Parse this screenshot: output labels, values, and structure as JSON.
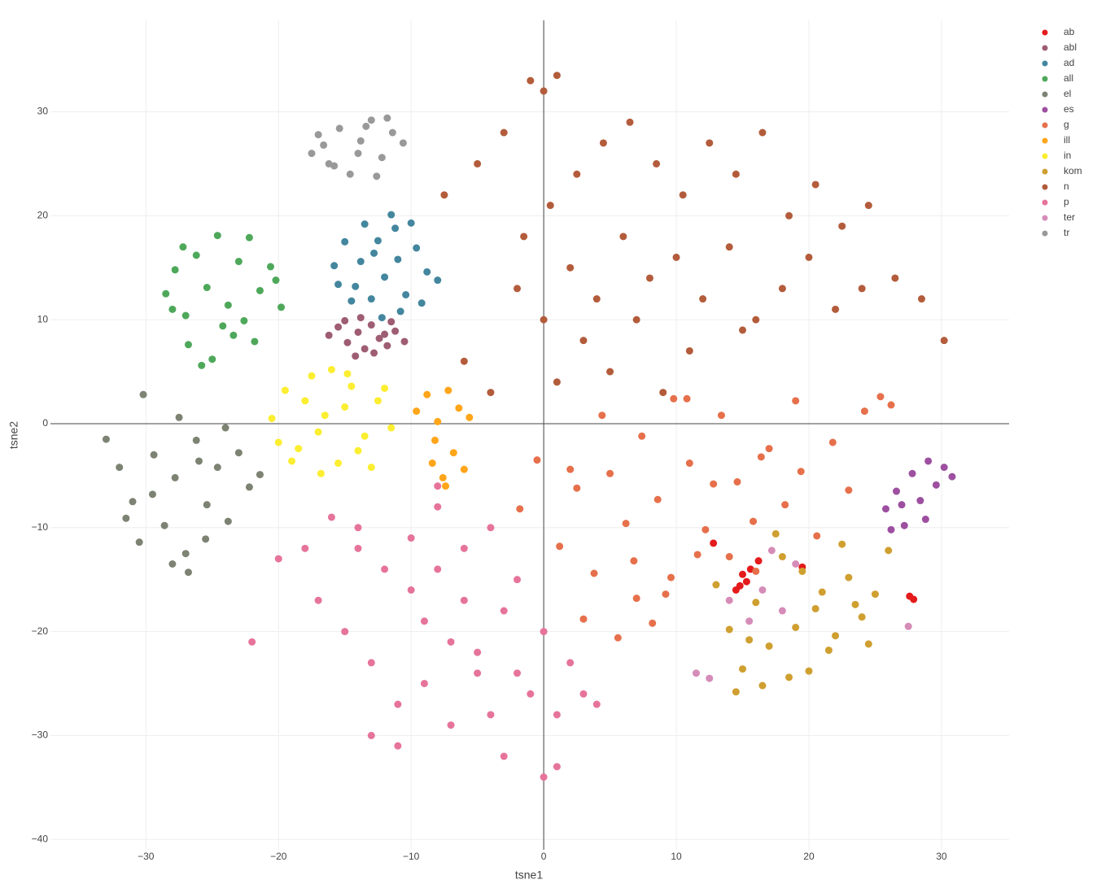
{
  "chart_data": {
    "type": "scatter",
    "x_label": "tsne1",
    "y_label": "tsne2",
    "xlim": [
      -37.2,
      35.1
    ],
    "ylim": [
      -41,
      38.8
    ],
    "xticks": [
      {
        "value": -30,
        "label": "−30"
      },
      {
        "value": -20,
        "label": "−20"
      },
      {
        "value": -10,
        "label": "−10"
      },
      0,
      10,
      20,
      30
    ],
    "yticks": [
      {
        "value": -40,
        "label": "−40"
      },
      {
        "value": -30,
        "label": "−30"
      },
      {
        "value": -20,
        "label": "−20"
      },
      {
        "value": -10,
        "label": "−10"
      },
      0,
      10,
      20,
      30
    ],
    "grid": true,
    "zeroline": true,
    "legend": "right",
    "series": [
      {
        "name": "ab",
        "color": "#e41a1c",
        "x": [
          15.0,
          15.3,
          14.8,
          15.6,
          16.2,
          27.6,
          27.9,
          19.5,
          12.8,
          14.5
        ],
        "y": [
          -14.5,
          -15.2,
          -15.6,
          -14.0,
          -13.2,
          -16.6,
          -16.9,
          -13.8,
          -11.5,
          -16.0
        ]
      },
      {
        "name": "abl",
        "color": "#9e5d72",
        "x": [
          -16.2,
          -15.5,
          -14.8,
          -14,
          -13.5,
          -13,
          -12.4,
          -11.8,
          -11.2,
          -10.5,
          -15,
          -13.8,
          -12.8,
          -11.5,
          -14.2,
          -12
        ],
        "y": [
          8.5,
          9.3,
          7.8,
          8.8,
          7.2,
          9.5,
          8.2,
          7.5,
          8.9,
          7.9,
          9.9,
          10.2,
          6.8,
          9.8,
          6.5,
          8.6
        ]
      },
      {
        "name": "ad",
        "color": "#43869e",
        "x": [
          -15.8,
          -15,
          -14.2,
          -13.5,
          -12.8,
          -12,
          -11.2,
          -10.4,
          -9.6,
          -8.8,
          -8,
          -14.5,
          -13,
          -11.5,
          -10,
          -12.5,
          -13.8,
          -11,
          -9.2,
          -15.5,
          -10.8,
          -12.2
        ],
        "y": [
          15.2,
          17.5,
          13.2,
          19.2,
          16.4,
          14.1,
          18.8,
          12.4,
          16.9,
          14.6,
          13.8,
          11.8,
          12.0,
          20.1,
          19.3,
          17.6,
          15.6,
          15.8,
          11.6,
          13.4,
          10.8,
          10.2
        ]
      },
      {
        "name": "all",
        "color": "#4ea85a",
        "x": [
          -28.5,
          -27.8,
          -27,
          -26.2,
          -25.4,
          -24.6,
          -23.8,
          -23,
          -22.2,
          -21.4,
          -20.6,
          -19.8,
          -26.8,
          -25,
          -23.4,
          -21.8,
          -28,
          -24.2,
          -22.6,
          -20.2,
          -25.8,
          -27.2
        ],
        "y": [
          12.5,
          14.8,
          10.4,
          16.2,
          13.1,
          18.1,
          11.4,
          15.6,
          17.9,
          12.8,
          15.1,
          11.2,
          7.6,
          6.2,
          8.5,
          7.9,
          11.0,
          9.4,
          9.9,
          13.8,
          5.6,
          17.0
        ]
      },
      {
        "name": "el",
        "color": "#7d8373",
        "x": [
          -33,
          -32,
          -31,
          -30.2,
          -29.4,
          -28.6,
          -27.8,
          -27,
          -26.2,
          -25.4,
          -24.6,
          -23.8,
          -23,
          -22.2,
          -21.4,
          -29.5,
          -27.5,
          -25.5,
          -31.5,
          -28,
          -26,
          -24,
          -30.5,
          -26.8
        ],
        "y": [
          -1.5,
          -4.2,
          -7.5,
          2.8,
          -3,
          -9.8,
          -5.2,
          -12.5,
          -1.6,
          -7.8,
          -4.2,
          -9.4,
          -2.8,
          -6.1,
          -4.9,
          -6.8,
          0.6,
          -11.1,
          -9.1,
          -13.5,
          -3.6,
          -0.4,
          -11.4,
          -14.3
        ]
      },
      {
        "name": "es",
        "color": "#9d4fa0",
        "x": [
          25.8,
          26.6,
          27.2,
          27.8,
          28.4,
          29,
          29.6,
          30.2,
          30.8,
          27,
          28.8,
          26.2
        ],
        "y": [
          -8.2,
          -6.5,
          -9.8,
          -4.8,
          -7.4,
          -3.6,
          -5.9,
          -4.2,
          -5.1,
          -7.8,
          -9.2,
          -10.2
        ]
      },
      {
        "name": "g",
        "color": "#e6704b",
        "x": [
          -1.8,
          -0.5,
          1.2,
          2.5,
          3.8,
          5,
          6.2,
          7.4,
          8.6,
          9.8,
          11,
          12.2,
          13.4,
          14.6,
          15.8,
          17,
          18.2,
          19.4,
          20.6,
          21.8,
          23,
          24.2,
          25.4,
          26.2,
          4.4,
          6.8,
          9.2,
          11.6,
          14,
          16.4,
          8.2,
          9.6,
          5.6,
          7,
          10.8,
          3,
          2,
          12.8,
          19,
          16
        ],
        "y": [
          -8.2,
          -3.5,
          -11.8,
          -6.2,
          -14.4,
          -4.8,
          -9.6,
          -1.2,
          -7.3,
          2.4,
          -3.8,
          -10.2,
          0.8,
          -5.6,
          -9.4,
          -2.4,
          -7.8,
          -4.6,
          -10.8,
          -1.8,
          -6.4,
          1.2,
          2.6,
          1.8,
          0.8,
          -13.2,
          -16.4,
          -12.6,
          -12.8,
          -3.2,
          -19.2,
          -14.8,
          -20.6,
          -16.8,
          2.4,
          -18.8,
          -4.4,
          -5.8,
          2.2,
          -14.2
        ]
      },
      {
        "name": "ill",
        "color": "#ffa51a",
        "x": [
          -9.6,
          -8.8,
          -8,
          -7.2,
          -6.4,
          -5.6,
          -8.4,
          -7.6,
          -6.8,
          -6,
          -7.4,
          -8.2
        ],
        "y": [
          1.2,
          2.8,
          0.2,
          3.2,
          1.5,
          0.6,
          -3.8,
          -5.2,
          -2.8,
          -4.4,
          -6,
          -1.6
        ]
      },
      {
        "name": "in",
        "color": "#fcee30",
        "x": [
          -20.5,
          -19.5,
          -18.5,
          -17.5,
          -16.5,
          -15.5,
          -14.5,
          -13.5,
          -12.5,
          -11.5,
          -19,
          -17,
          -15,
          -13,
          -18,
          -16,
          -14,
          -12,
          -20,
          -16.8,
          -14.8
        ],
        "y": [
          0.5,
          3.2,
          -2.4,
          4.6,
          0.8,
          -3.8,
          3.6,
          -1.2,
          2.2,
          -0.4,
          -3.6,
          -0.8,
          1.6,
          -4.2,
          2.2,
          5.2,
          -2.6,
          3.4,
          -1.8,
          -4.8,
          4.8
        ]
      },
      {
        "name": "kom",
        "color": "#cf9f30",
        "x": [
          13,
          14,
          15,
          16,
          17,
          18,
          19,
          20,
          21,
          22,
          23,
          24,
          25,
          26,
          16.5,
          18.5,
          20.5,
          22.5,
          24.5,
          14.5,
          19.5,
          21.5,
          17.5,
          23.5,
          15.5
        ],
        "y": [
          -15.5,
          -19.8,
          -23.6,
          -17.2,
          -21.4,
          -12.8,
          -19.6,
          -23.8,
          -16.2,
          -20.4,
          -14.8,
          -18.6,
          -16.4,
          -12.2,
          -25.2,
          -24.4,
          -17.8,
          -11.6,
          -21.2,
          -25.8,
          -14.2,
          -21.8,
          -10.6,
          -17.4,
          -20.8
        ]
      },
      {
        "name": "n",
        "color": "#b35c3b",
        "x": [
          -1,
          0,
          1,
          -7.5,
          -5,
          -3,
          -1.5,
          0.5,
          2.5,
          4.5,
          6.5,
          8.5,
          10.5,
          12.5,
          14.5,
          16.5,
          18.5,
          20.5,
          22.5,
          24.5,
          26.5,
          28.5,
          30.2,
          -2,
          0,
          2,
          4,
          6,
          8,
          10,
          12,
          14,
          16,
          18,
          20,
          22,
          24,
          3,
          7,
          11,
          15,
          -6,
          -4,
          1,
          5,
          9
        ],
        "y": [
          33,
          32,
          33.5,
          22,
          25,
          28,
          18,
          21,
          24,
          27,
          29,
          25,
          22,
          27,
          24,
          28,
          20,
          23,
          19,
          21,
          14,
          12,
          8,
          13,
          10,
          15,
          12,
          18,
          14,
          16,
          12,
          17,
          10,
          13,
          16,
          11,
          13,
          8,
          10,
          7,
          9,
          6,
          3,
          4,
          5,
          3
        ]
      },
      {
        "name": "p",
        "color": "#e6749a",
        "x": [
          -22,
          -20,
          -18,
          -16,
          -14,
          -12,
          -10,
          -8,
          -6,
          -4,
          -2,
          0,
          2,
          4,
          -17,
          -15,
          -13,
          -11,
          -9,
          -7,
          -5,
          -3,
          -1,
          1,
          3,
          -13,
          -11,
          -9,
          -7,
          -5,
          -3,
          -10,
          -8,
          -6,
          -4,
          -2,
          0,
          1,
          -8,
          -14
        ],
        "y": [
          -21,
          -13,
          -12,
          -9,
          -12,
          -14,
          -11,
          -8,
          -12,
          -10,
          -15,
          -20,
          -23,
          -27,
          -17,
          -20,
          -23,
          -27,
          -19,
          -21,
          -24,
          -18,
          -26,
          -28,
          -26,
          -30,
          -31,
          -25,
          -29,
          -22,
          -32,
          -16,
          -14,
          -17,
          -28,
          -24,
          -34,
          -33,
          -6,
          -10
        ]
      },
      {
        "name": "ter",
        "color": "#d68cb8",
        "x": [
          14,
          15.5,
          16.5,
          18,
          11.5,
          12.5,
          19,
          17.2,
          27.5
        ],
        "y": [
          -17,
          -19,
          -16,
          -18,
          -24,
          -24.5,
          -13.5,
          -12.2,
          -19.5
        ]
      },
      {
        "name": "tr",
        "color": "#999999",
        "x": [
          -17.5,
          -17,
          -16.2,
          -15.4,
          -14.6,
          -13.8,
          -13,
          -12.2,
          -11.4,
          -10.6,
          -15.8,
          -14,
          -12.6,
          -16.6,
          -13.4,
          -11.8
        ],
        "y": [
          26,
          27.8,
          25,
          28.4,
          24,
          27.2,
          29.2,
          25.6,
          28,
          27,
          24.8,
          26,
          23.8,
          26.8,
          28.6,
          29.4
        ]
      }
    ]
  }
}
